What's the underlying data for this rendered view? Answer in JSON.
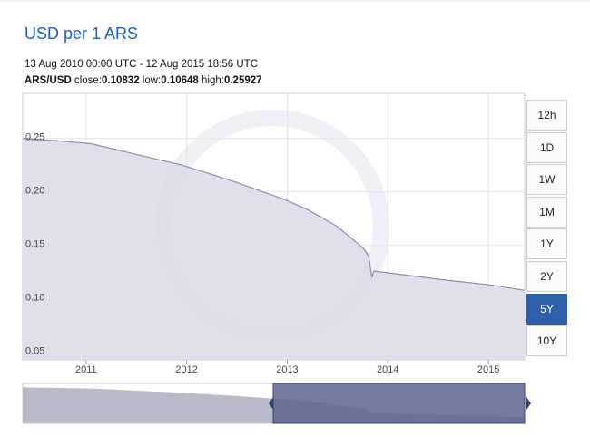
{
  "header": {
    "title": "USD per 1 ARS",
    "range": "13 Aug 2010 00:00 UTC - 12 Aug 2015 18:56 UTC",
    "pair": "ARS/USD",
    "stats": [
      {
        "label": "close:",
        "value": "0.10832"
      },
      {
        "label": "low:",
        "value": "0.10648"
      },
      {
        "label": "high:",
        "value": "0.25927"
      }
    ]
  },
  "buttons": [
    {
      "label": "12h"
    },
    {
      "label": "1D"
    },
    {
      "label": "1W"
    },
    {
      "label": "1M"
    },
    {
      "label": "1Y"
    },
    {
      "label": "2Y"
    },
    {
      "label": "5Y",
      "active": true
    },
    {
      "label": "10Y"
    }
  ],
  "chart_data": {
    "type": "area",
    "x": [
      2010.37,
      2010.68,
      2011.05,
      2011.45,
      2011.95,
      2012.46,
      2012.97,
      2013.21,
      2013.49,
      2013.62,
      2013.76,
      2013.81,
      2013.84,
      2013.86,
      2014.03,
      2014.53,
      2015.02,
      2015.36
    ],
    "series": [
      {
        "name": "ARS/USD",
        "color": "#8a90ad",
        "values": [
          0.25,
          0.248,
          0.245,
          0.236,
          0.225,
          0.21,
          0.193,
          0.183,
          0.168,
          0.158,
          0.147,
          0.14,
          0.12,
          0.126,
          0.124,
          0.118,
          0.113,
          0.108
        ]
      }
    ],
    "xlim": [
      2010.37,
      2015.36
    ],
    "xticks": [
      2011,
      2012,
      2013,
      2014,
      2015
    ],
    "ylim": [
      0.043,
      0.292
    ],
    "yticks": [
      0.05,
      {
        "value": 0.1,
        "label": "0.10"
      },
      0.15,
      {
        "value": 0.2,
        "label": "0.20"
      },
      0.25
    ],
    "grid": true
  }
}
